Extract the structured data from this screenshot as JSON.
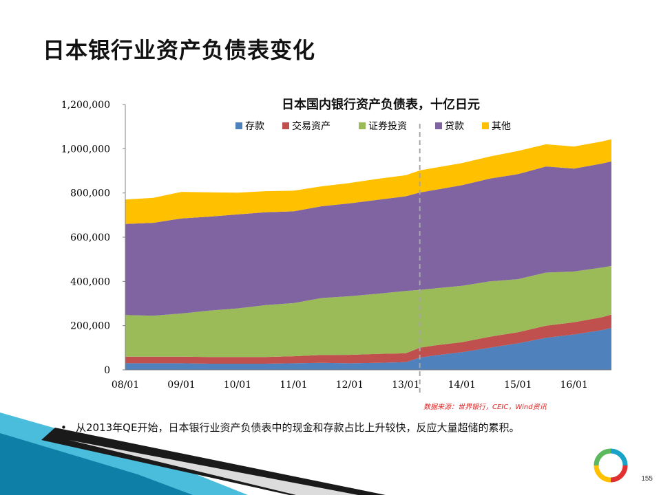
{
  "slide": {
    "title": "日本银行业资产负债表变化",
    "bullet": "从2013年QE开始，日本银行业资产负债表中的现金和存款占比上升较快，反应大量超储的累积。",
    "source": "数据来源：世界银行，CEIC，Wind资讯",
    "page_number": "155"
  },
  "colors": {
    "deposits": "#4f81bd",
    "trading_assets": "#c0504d",
    "securities": "#9bbb59",
    "loans": "#8064a2",
    "other": "#ffc000",
    "divider": "#a6a6a6",
    "accent_teal": "#1aa3c8"
  },
  "chart_data": {
    "type": "area",
    "stacked": true,
    "title": "日本国内银行资产负债表，十亿日元",
    "legend_position": "top",
    "y_ticks": [
      "0",
      "200,000",
      "400,000",
      "600,000",
      "800,000",
      "1,000,000",
      "1,200,000"
    ],
    "ylim": [
      0,
      1200000
    ],
    "x_ticks": [
      "08/01",
      "09/01",
      "10/01",
      "11/01",
      "12/01",
      "13/01",
      "14/01",
      "15/01",
      "16/01"
    ],
    "xlim": [
      "2008-01",
      "2016-09"
    ],
    "vertical_marker": "2013-04",
    "x": [
      "2008-01",
      "2008-07",
      "2009-01",
      "2009-07",
      "2010-01",
      "2010-07",
      "2011-01",
      "2011-07",
      "2012-01",
      "2012-07",
      "2013-01",
      "2013-04",
      "2013-07",
      "2014-01",
      "2014-07",
      "2015-01",
      "2015-07",
      "2016-01",
      "2016-07",
      "2016-09"
    ],
    "series": [
      {
        "name": "存款",
        "color_key": "deposits",
        "values": [
          30000,
          30000,
          30000,
          28000,
          28000,
          28000,
          30000,
          32000,
          30000,
          32000,
          35000,
          55000,
          65000,
          80000,
          100000,
          120000,
          145000,
          160000,
          180000,
          190000
        ]
      },
      {
        "name": "交易资产",
        "color_key": "trading_assets",
        "values": [
          30000,
          30000,
          30000,
          30000,
          30000,
          30000,
          32000,
          35000,
          38000,
          40000,
          40000,
          45000,
          45000,
          45000,
          50000,
          50000,
          55000,
          55000,
          58000,
          60000
        ]
      },
      {
        "name": "证券投资",
        "color_key": "securities",
        "values": [
          188000,
          185000,
          195000,
          210000,
          220000,
          235000,
          240000,
          258000,
          265000,
          272000,
          282000,
          262000,
          258000,
          255000,
          250000,
          240000,
          240000,
          230000,
          225000,
          220000
        ]
      },
      {
        "name": "贷款",
        "color_key": "loans",
        "values": [
          412000,
          420000,
          430000,
          425000,
          425000,
          420000,
          415000,
          415000,
          420000,
          425000,
          428000,
          440000,
          445000,
          455000,
          465000,
          475000,
          480000,
          465000,
          470000,
          473000
        ]
      },
      {
        "name": "其他",
        "color_key": "other",
        "values": [
          110000,
          113000,
          120000,
          110000,
          98000,
          95000,
          93000,
          90000,
          92000,
          95000,
          95000,
          100000,
          100000,
          100000,
          100000,
          105000,
          100000,
          100000,
          100000,
          100000
        ]
      }
    ]
  }
}
